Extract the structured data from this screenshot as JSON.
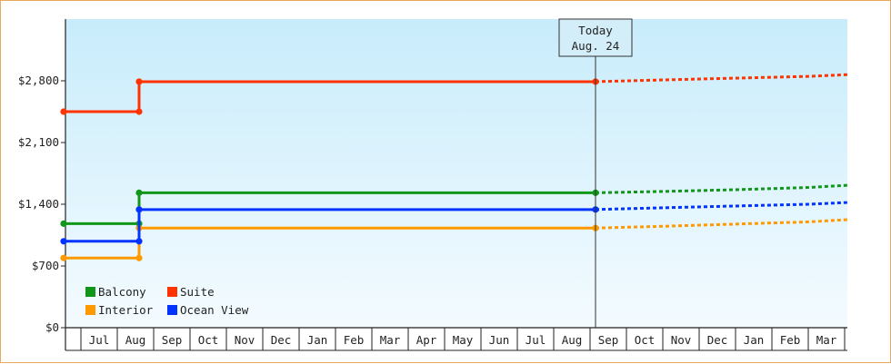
{
  "chart_data": {
    "type": "line",
    "title": "",
    "xlabel": "",
    "ylabel": "",
    "ylim": [
      0,
      3500
    ],
    "yticks": [
      0,
      700,
      1400,
      2100,
      2800
    ],
    "ytick_labels": [
      "$0",
      "$700",
      "$1,400",
      "$2,100",
      "$2,800"
    ],
    "x_tick_labels": [
      "Jul",
      "Aug",
      "Sep",
      "Oct",
      "Nov",
      "Dec",
      "Jan",
      "Feb",
      "Mar",
      "Apr",
      "May",
      "Jun",
      "Jul",
      "Aug",
      "Sep",
      "Oct",
      "Nov",
      "Dec",
      "Jan",
      "Feb",
      "Mar"
    ],
    "today": {
      "line1": "Today",
      "line2": "Aug. 24",
      "x": 14.15
    },
    "grid": false,
    "legend_position": "bottom-left",
    "series": [
      {
        "name": "Balcony",
        "color": "#109618",
        "history": [
          [
            0,
            1180
          ],
          [
            1.6,
            1180
          ],
          [
            1.6,
            1530
          ],
          [
            14.15,
            1530
          ]
        ],
        "forecast": [
          [
            14.15,
            1530
          ],
          [
            16,
            1545
          ],
          [
            18,
            1565
          ],
          [
            20,
            1590
          ],
          [
            22,
            1615
          ],
          [
            23.7,
            1640
          ]
        ]
      },
      {
        "name": "Suite",
        "color": "#ff3300",
        "history": [
          [
            0,
            2450
          ],
          [
            1.6,
            2450
          ],
          [
            1.6,
            2790
          ],
          [
            14.15,
            2790
          ]
        ],
        "forecast": [
          [
            14.15,
            2790
          ],
          [
            16,
            2810
          ],
          [
            18,
            2830
          ],
          [
            20,
            2850
          ],
          [
            22,
            2870
          ],
          [
            23.7,
            2890
          ]
        ]
      },
      {
        "name": "Interior",
        "color": "#ff9900",
        "history": [
          [
            0,
            790
          ],
          [
            1.6,
            790
          ],
          [
            1.6,
            1130
          ],
          [
            14.15,
            1130
          ]
        ],
        "forecast": [
          [
            14.15,
            1130
          ],
          [
            16,
            1150
          ],
          [
            18,
            1175
          ],
          [
            20,
            1200
          ],
          [
            22,
            1225
          ],
          [
            23.7,
            1250
          ]
        ]
      },
      {
        "name": "Ocean View",
        "color": "#0033ff",
        "history": [
          [
            0,
            980
          ],
          [
            1.6,
            980
          ],
          [
            1.6,
            1340
          ],
          [
            14.15,
            1340
          ]
        ],
        "forecast": [
          [
            14.15,
            1340
          ],
          [
            16,
            1360
          ],
          [
            18,
            1380
          ],
          [
            20,
            1400
          ],
          [
            22,
            1420
          ],
          [
            23.7,
            1445
          ]
        ]
      }
    ]
  }
}
